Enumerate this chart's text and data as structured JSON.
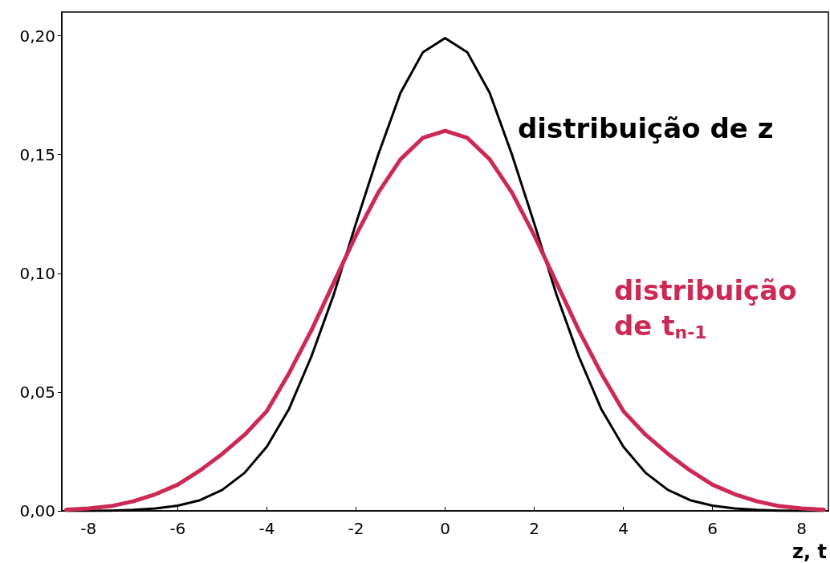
{
  "chart_data": {
    "type": "line",
    "xlabel": "z, t",
    "xlim": [
      -8.6,
      8.6
    ],
    "ylim": [
      0,
      0.21
    ],
    "xticks": [
      -8,
      -6,
      -4,
      -2,
      0,
      2,
      4,
      6,
      8
    ],
    "yticks": [
      {
        "value": 0,
        "label": "0,00"
      },
      {
        "value": 0.05,
        "label": "0,05"
      },
      {
        "value": 0.1,
        "label": "0,10"
      },
      {
        "value": 0.15,
        "label": "0,15"
      },
      {
        "value": 0.2,
        "label": "0,20"
      }
    ],
    "grid": false,
    "legend": false,
    "marker": "none",
    "line_style": "solid",
    "x": [
      -8.5,
      -8,
      -7.5,
      -7,
      -6.5,
      -6,
      -5.5,
      -5,
      -4.5,
      -4,
      -3.5,
      -3,
      -2.5,
      -2,
      -1.5,
      -1,
      -0.5,
      0,
      0.5,
      1,
      1.5,
      2,
      2.5,
      3,
      3.5,
      4,
      4.5,
      5,
      5.5,
      6,
      6.5,
      7,
      7.5,
      8,
      8.5
    ],
    "series": [
      {
        "name": "distribuição de z",
        "color": "#000000",
        "values": [
          0,
          0,
          0.0001,
          0.0004,
          0.001,
          0.0022,
          0.0045,
          0.0088,
          0.016,
          0.027,
          0.043,
          0.065,
          0.091,
          0.121,
          0.15,
          0.176,
          0.193,
          0.199,
          0.193,
          0.176,
          0.15,
          0.121,
          0.091,
          0.065,
          0.043,
          0.027,
          0.016,
          0.0088,
          0.0045,
          0.0022,
          0.001,
          0.0004,
          0.0001,
          0,
          0
        ]
      },
      {
        "name": "distribuição de t$_{n-1}$",
        "color": "#cc2955",
        "values": [
          0.0005,
          0.001,
          0.002,
          0.004,
          0.007,
          0.011,
          0.017,
          0.024,
          0.032,
          0.042,
          0.058,
          0.076,
          0.096,
          0.116,
          0.134,
          0.148,
          0.157,
          0.16,
          0.157,
          0.148,
          0.134,
          0.116,
          0.096,
          0.076,
          0.058,
          0.042,
          0.032,
          0.024,
          0.017,
          0.011,
          0.007,
          0.004,
          0.002,
          0.001,
          0.0005
        ]
      }
    ]
  }
}
